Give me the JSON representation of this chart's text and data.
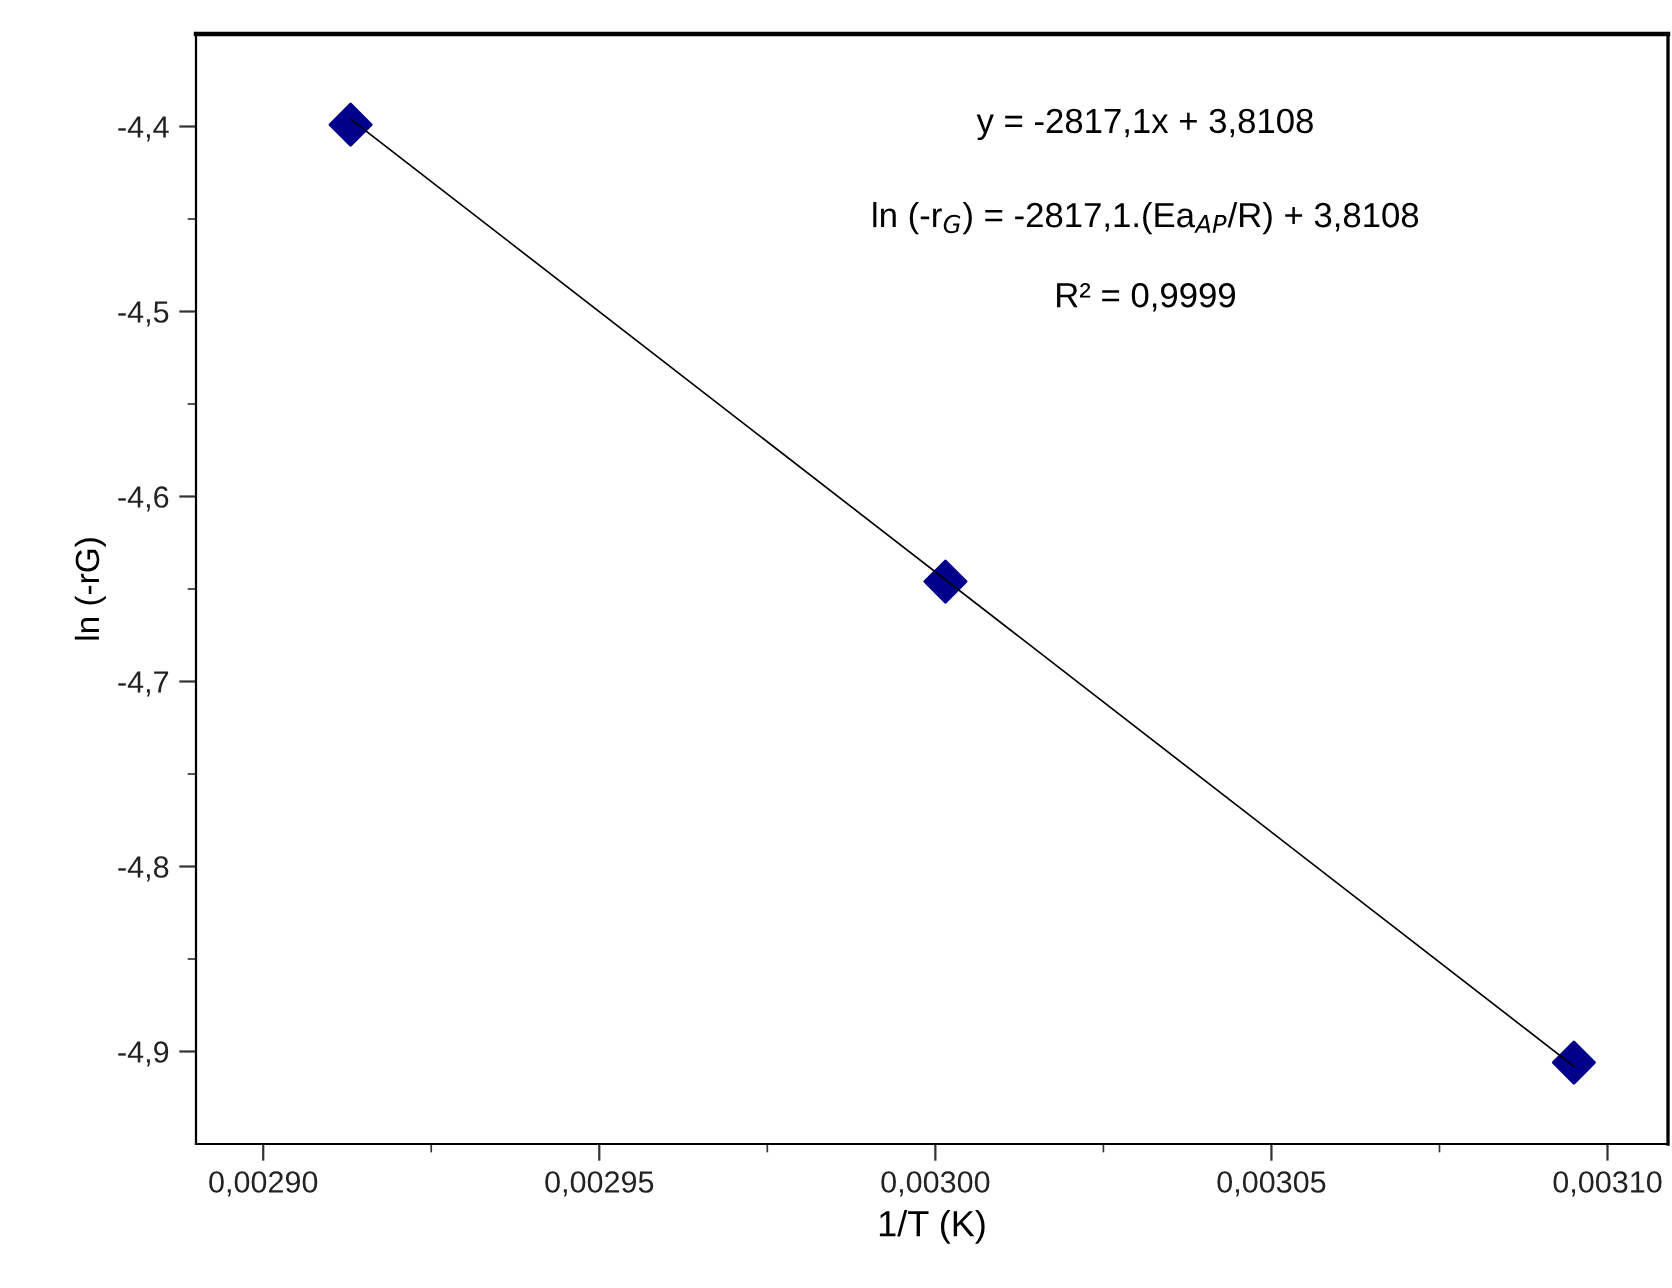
{
  "chart_data": {
    "type": "scatter",
    "xlabel": "1/T (K)",
    "ylabel": "ln (-rG)",
    "series": [
      {
        "color": "#00008b",
        "marker": "diamond",
        "x": [
          0.002913,
          0.0030015,
          0.003095
        ],
        "values": [
          -4.399,
          -4.646,
          -4.906
        ]
      },
      {
        "type": "line",
        "color": "#000000",
        "marker": "none",
        "line_style": "solid",
        "x": [
          0.002913,
          0.003095
        ],
        "values": [
          -4.396,
          -4.908
        ]
      }
    ],
    "xlim": [
      0.00289,
      0.003109
    ],
    "ylim": [
      -4.95,
      -4.35
    ],
    "xticks": [
      {
        "value": 0.0029,
        "label": "0,00290"
      },
      {
        "value": 0.002925,
        "label": null
      },
      {
        "value": 0.00295,
        "label": "0,00295"
      },
      {
        "value": 0.002975,
        "label": null
      },
      {
        "value": 0.003,
        "label": "0,00300"
      },
      {
        "value": 0.003025,
        "label": null
      },
      {
        "value": 0.00305,
        "label": "0,00305"
      },
      {
        "value": 0.003075,
        "label": null
      },
      {
        "value": 0.0031,
        "label": "0,00310"
      }
    ],
    "yticks": [
      {
        "value": -4.4,
        "label": "-4,4"
      },
      {
        "value": -4.45,
        "label": null
      },
      {
        "value": -4.5,
        "label": "-4,5"
      },
      {
        "value": -4.55,
        "label": null
      },
      {
        "value": -4.6,
        "label": "-4,6"
      },
      {
        "value": -4.65,
        "label": null
      },
      {
        "value": -4.7,
        "label": "-4,7"
      },
      {
        "value": -4.75,
        "label": null
      },
      {
        "value": -4.8,
        "label": "-4,8"
      },
      {
        "value": -4.85,
        "label": null
      },
      {
        "value": -4.9,
        "label": "-4,9"
      }
    ],
    "annotations": [
      "y = -2817,1x + 3,8108",
      "ln (-r$_{G}$) = -2817,1.(Ea$_{AP}$/R) + 3,8108",
      "R² = 0,9999"
    ],
    "grid": false,
    "legend": false
  }
}
